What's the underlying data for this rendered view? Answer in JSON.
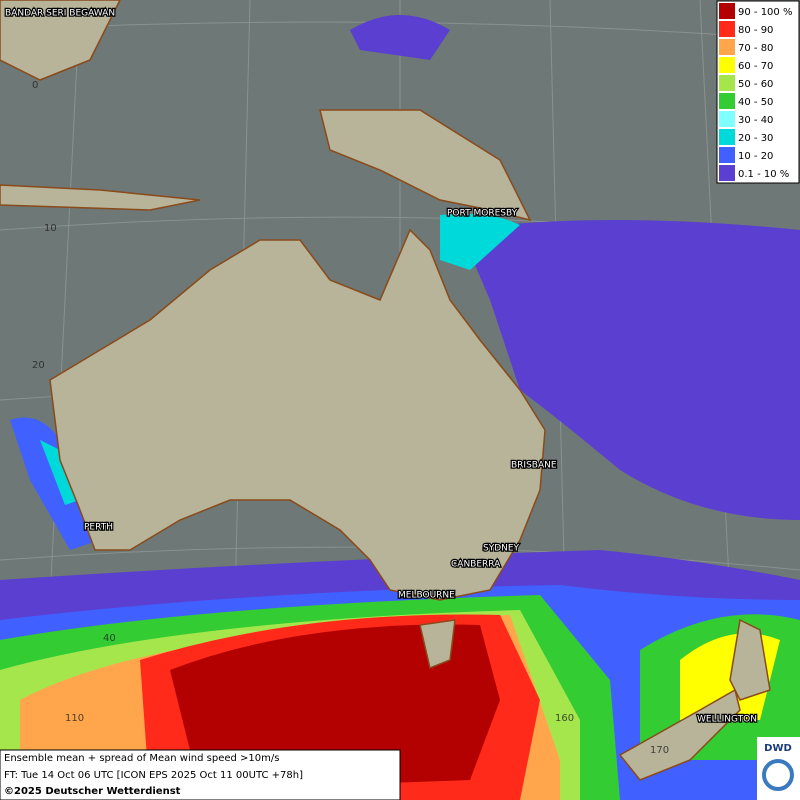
{
  "legend": {
    "items": [
      {
        "label": "90 - 100 %",
        "color": "#b30000"
      },
      {
        "label": "80 - 90",
        "color": "#ff2a1a"
      },
      {
        "label": "70 - 80",
        "color": "#ffa64d"
      },
      {
        "label": "60 - 70",
        "color": "#ffff00"
      },
      {
        "label": "50 - 60",
        "color": "#a6e64d"
      },
      {
        "label": "40 - 50",
        "color": "#33cc33"
      },
      {
        "label": "30 - 40",
        "color": "#80ffff"
      },
      {
        "label": "20 - 30",
        "color": "#00d9d9"
      },
      {
        "label": "10 - 20",
        "color": "#4060ff"
      },
      {
        "label": "0.1 - 10 %",
        "color": "#5a3fd0"
      }
    ]
  },
  "cities": [
    "BANDAR SERI BEGAWAN",
    "PORT MORESBY",
    "BRISBANE",
    "PERTH",
    "SYDNEY",
    "CANBERRA",
    "MELBOURNE",
    "WELLINGTON"
  ],
  "grid_labels": [
    "0",
    "10",
    "20",
    "40",
    "110",
    "160",
    "170"
  ],
  "caption": [
    "Ensemble mean + spread of Mean wind speed >10m/s",
    "FT: Tue 14 Oct 06 UTC [ICON EPS 2025 Oct 11 00UTC +78h]",
    "©2025 Deutscher Wetterdienst"
  ],
  "logo": "DWD"
}
